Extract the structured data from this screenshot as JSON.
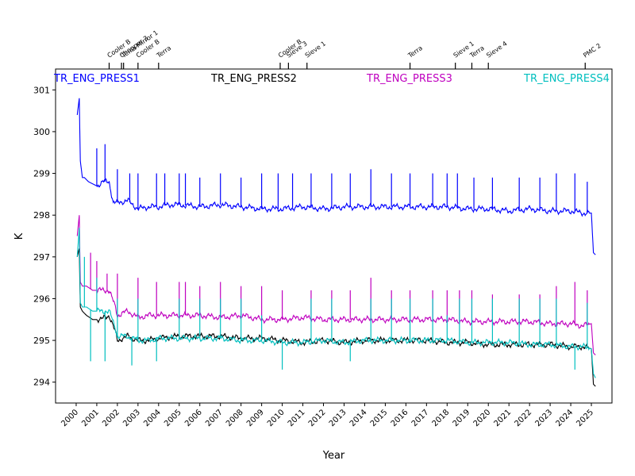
{
  "chart_data": {
    "type": "line",
    "title": "",
    "xlabel": "Year",
    "ylabel": "K",
    "xlim": [
      1999.0,
      2026.0
    ],
    "ylim": [
      293.5,
      301.5
    ],
    "yticks": [
      294,
      295,
      296,
      297,
      298,
      299,
      300,
      301
    ],
    "xticks": [
      "2000",
      "2001",
      "2002",
      "2003",
      "2004",
      "2005",
      "2006",
      "2007",
      "2008",
      "2009",
      "2010",
      "2011",
      "2012",
      "2013",
      "2014",
      "2015",
      "2016",
      "2017",
      "2018",
      "2019",
      "2020",
      "2021",
      "2022",
      "2023",
      "2024",
      "2025"
    ],
    "legend": [
      {
        "name": "TR_ENG_PRESS1",
        "color": "#0000ff",
        "placement": "top-left"
      },
      {
        "name": "TR_ENG_PRESS2",
        "color": "#000000",
        "placement": "top-center-left"
      },
      {
        "name": "TR_ENG_PRESS3",
        "color": "#bf00bf",
        "placement": "top-center-right"
      },
      {
        "name": "TR_ENG_PRESS4",
        "color": "#00bfbf",
        "placement": "top-right"
      }
    ],
    "events": [
      {
        "label": "Cooler B",
        "x": 2001.6
      },
      {
        "label": "Chopper 3",
        "x": 2002.2
      },
      {
        "label": "Terra Mirror 1",
        "x": 2002.3
      },
      {
        "label": "Cooler B",
        "x": 2003.0
      },
      {
        "label": "Terra",
        "x": 2004.0
      },
      {
        "label": "Cooler B",
        "x": 2009.9
      },
      {
        "label": "Sieve 3",
        "x": 2010.3
      },
      {
        "label": "Sieve 1",
        "x": 2011.2
      },
      {
        "label": "Terra",
        "x": 2016.2
      },
      {
        "label": "Sieve 1",
        "x": 2018.4
      },
      {
        "label": "Terra",
        "x": 2019.2
      },
      {
        "label": "Sieve 4",
        "x": 2020.0
      },
      {
        "label": "PMC 2",
        "x": 2024.7
      }
    ],
    "series": [
      {
        "name": "TR_ENG_PRESS1",
        "color": "#0000ff",
        "x": [
          2000.05,
          2000.15,
          2000.2,
          2000.3,
          2000.4,
          2000.6,
          2001.0,
          2001.3,
          2001.6,
          2001.8,
          2002.0,
          2002.5,
          2003.0,
          2003.5,
          2004.0,
          2004.5,
          2005.0,
          2006.0,
          2007.0,
          2008.0,
          2009.0,
          2010.0,
          2011.0,
          2012.0,
          2013.0,
          2014.0,
          2015.0,
          2016.0,
          2017.0,
          2018.0,
          2019.0,
          2020.0,
          2021.0,
          2022.0,
          2023.0,
          2024.0,
          2024.6,
          2025.0,
          2025.1,
          2025.2
        ],
        "values": [
          300.4,
          300.8,
          299.3,
          298.9,
          298.9,
          298.8,
          298.7,
          298.8,
          298.8,
          298.3,
          298.3,
          298.35,
          298.15,
          298.2,
          298.2,
          298.25,
          298.25,
          298.2,
          298.25,
          298.2,
          298.15,
          298.15,
          298.2,
          298.15,
          298.2,
          298.2,
          298.2,
          298.2,
          298.2,
          298.2,
          298.15,
          298.15,
          298.1,
          298.15,
          298.1,
          298.1,
          298.05,
          298.05,
          297.1,
          297.05
        ],
        "spikes": [
          [
            2001.0,
            299.6
          ],
          [
            2001.4,
            299.7
          ],
          [
            2002.0,
            299.1
          ],
          [
            2002.6,
            299.0
          ],
          [
            2003.0,
            299.0
          ],
          [
            2003.9,
            299.0
          ],
          [
            2004.3,
            299.0
          ],
          [
            2005.0,
            299.0
          ],
          [
            2005.3,
            299.0
          ],
          [
            2006.0,
            298.9
          ],
          [
            2007.0,
            299.0
          ],
          [
            2008.0,
            298.9
          ],
          [
            2009.0,
            299.0
          ],
          [
            2009.8,
            299.0
          ],
          [
            2010.5,
            299.0
          ],
          [
            2011.4,
            299.0
          ],
          [
            2012.4,
            299.0
          ],
          [
            2013.3,
            299.0
          ],
          [
            2014.3,
            299.1
          ],
          [
            2015.3,
            299.0
          ],
          [
            2016.2,
            299.0
          ],
          [
            2017.3,
            299.0
          ],
          [
            2018.0,
            299.0
          ],
          [
            2018.5,
            299.0
          ],
          [
            2019.3,
            298.9
          ],
          [
            2020.2,
            298.9
          ],
          [
            2021.5,
            298.9
          ],
          [
            2022.5,
            298.9
          ],
          [
            2023.3,
            299.0
          ],
          [
            2024.2,
            299.0
          ],
          [
            2024.8,
            298.8
          ]
        ]
      },
      {
        "name": "TR_ENG_PRESS2",
        "color": "#000000",
        "x": [
          2000.05,
          2000.15,
          2000.2,
          2000.3,
          2000.5,
          2000.8,
          2001.2,
          2001.6,
          2001.9,
          2002.0,
          2002.5,
          2003.0,
          2003.5,
          2004.0,
          2005.0,
          2006.0,
          2007.0,
          2008.0,
          2009.0,
          2010.0,
          2011.0,
          2012.0,
          2013.0,
          2014.0,
          2015.0,
          2016.0,
          2017.0,
          2018.0,
          2019.0,
          2020.0,
          2021.0,
          2022.0,
          2023.0,
          2024.0,
          2024.6,
          2025.0,
          2025.1,
          2025.2
        ],
        "values": [
          297.0,
          297.2,
          295.8,
          295.7,
          295.6,
          295.5,
          295.5,
          295.6,
          295.2,
          295.0,
          295.1,
          295.0,
          295.0,
          295.05,
          295.1,
          295.1,
          295.1,
          295.05,
          295.05,
          295.0,
          294.95,
          295.0,
          294.95,
          295.0,
          295.0,
          295.0,
          295.0,
          294.95,
          294.95,
          294.9,
          294.9,
          294.9,
          294.9,
          294.85,
          294.85,
          294.8,
          293.95,
          293.9
        ],
        "spikes": []
      },
      {
        "name": "TR_ENG_PRESS3",
        "color": "#bf00bf",
        "x": [
          2000.05,
          2000.15,
          2000.2,
          2000.3,
          2000.5,
          2000.8,
          2001.2,
          2001.6,
          2001.9,
          2002.0,
          2002.5,
          2003.0,
          2003.5,
          2004.0,
          2005.0,
          2006.0,
          2007.0,
          2008.0,
          2009.0,
          2010.0,
          2011.0,
          2012.0,
          2013.0,
          2014.0,
          2015.0,
          2016.0,
          2017.0,
          2018.0,
          2019.0,
          2020.0,
          2021.0,
          2022.0,
          2023.0,
          2024.0,
          2024.6,
          2025.0,
          2025.1,
          2025.2
        ],
        "values": [
          297.5,
          298.0,
          296.4,
          296.3,
          296.3,
          296.2,
          296.2,
          296.2,
          295.8,
          295.6,
          295.7,
          295.55,
          295.6,
          295.6,
          295.6,
          295.6,
          295.55,
          295.6,
          295.5,
          295.5,
          295.55,
          295.5,
          295.5,
          295.5,
          295.5,
          295.5,
          295.5,
          295.5,
          295.45,
          295.45,
          295.45,
          295.45,
          295.4,
          295.4,
          295.35,
          295.4,
          294.7,
          294.65
        ],
        "spikes": [
          [
            2000.7,
            297.1
          ],
          [
            2001.0,
            296.9
          ],
          [
            2001.5,
            296.6
          ],
          [
            2002.0,
            296.6
          ],
          [
            2003.0,
            296.5
          ],
          [
            2003.9,
            296.4
          ],
          [
            2005.0,
            296.4
          ],
          [
            2005.3,
            296.4
          ],
          [
            2006.0,
            296.3
          ],
          [
            2007.0,
            296.4
          ],
          [
            2008.0,
            296.3
          ],
          [
            2009.0,
            296.3
          ],
          [
            2010.0,
            296.2
          ],
          [
            2011.4,
            296.2
          ],
          [
            2012.4,
            296.2
          ],
          [
            2013.3,
            296.2
          ],
          [
            2014.3,
            296.5
          ],
          [
            2015.3,
            296.2
          ],
          [
            2016.2,
            296.2
          ],
          [
            2017.3,
            296.2
          ],
          [
            2018.0,
            296.2
          ],
          [
            2018.6,
            296.2
          ],
          [
            2019.2,
            296.2
          ],
          [
            2020.2,
            296.1
          ],
          [
            2021.5,
            296.1
          ],
          [
            2022.5,
            296.1
          ],
          [
            2023.3,
            296.3
          ],
          [
            2024.2,
            296.4
          ],
          [
            2024.8,
            296.2
          ]
        ]
      },
      {
        "name": "TR_ENG_PRESS4",
        "color": "#00bfbf",
        "x": [
          2000.05,
          2000.15,
          2000.2,
          2000.3,
          2000.5,
          2000.8,
          2001.2,
          2001.6,
          2001.9,
          2002.0,
          2002.5,
          2003.0,
          2003.5,
          2004.0,
          2005.0,
          2006.0,
          2007.0,
          2008.0,
          2009.0,
          2010.0,
          2011.0,
          2012.0,
          2013.0,
          2014.0,
          2015.0,
          2016.0,
          2017.0,
          2018.0,
          2019.0,
          2020.0,
          2021.0,
          2022.0,
          2023.0,
          2024.0,
          2024.6,
          2025.0,
          2025.1,
          2025.2
        ],
        "values": [
          297.0,
          297.7,
          295.9,
          295.8,
          295.8,
          295.7,
          295.7,
          295.7,
          295.3,
          295.1,
          295.1,
          295.0,
          295.0,
          295.05,
          295.05,
          295.05,
          295.05,
          295.0,
          295.0,
          294.95,
          294.95,
          295.0,
          294.95,
          295.0,
          295.0,
          295.0,
          295.0,
          295.0,
          294.95,
          294.95,
          294.95,
          294.9,
          294.9,
          294.85,
          294.85,
          294.8,
          294.2,
          294.1
        ],
        "spikes": [
          [
            2000.4,
            297.0
          ],
          [
            2000.7,
            294.5
          ],
          [
            2001.0,
            296.5
          ],
          [
            2001.4,
            294.5
          ],
          [
            2002.0,
            296.0
          ],
          [
            2002.7,
            294.4
          ],
          [
            2003.0,
            296.0
          ],
          [
            2003.9,
            294.5
          ],
          [
            2005.0,
            296.0
          ],
          [
            2006.0,
            296.0
          ],
          [
            2007.0,
            296.0
          ],
          [
            2008.0,
            296.0
          ],
          [
            2009.0,
            295.6
          ],
          [
            2010.0,
            294.3
          ],
          [
            2011.4,
            296.0
          ],
          [
            2012.4,
            296.0
          ],
          [
            2013.3,
            294.5
          ],
          [
            2014.3,
            296.0
          ],
          [
            2015.3,
            296.0
          ],
          [
            2016.2,
            296.0
          ],
          [
            2017.3,
            296.0
          ],
          [
            2018.0,
            295.6
          ],
          [
            2018.6,
            296.0
          ],
          [
            2019.2,
            296.0
          ],
          [
            2020.2,
            296.0
          ],
          [
            2021.5,
            296.0
          ],
          [
            2022.5,
            296.0
          ],
          [
            2023.3,
            296.0
          ],
          [
            2024.2,
            294.3
          ],
          [
            2024.8,
            295.9
          ]
        ]
      }
    ]
  }
}
